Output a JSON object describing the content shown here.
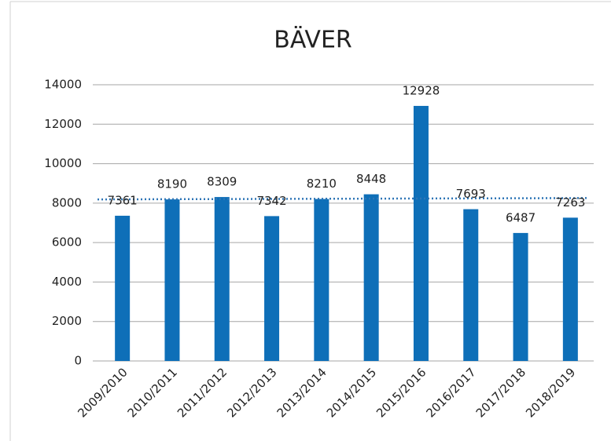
{
  "chart_data": {
    "type": "bar",
    "title": "BÄVER",
    "categories": [
      "2009/2010",
      "2010/2011",
      "2011/2012",
      "2012/2013",
      "2013/2014",
      "2014/2015",
      "2015/2016",
      "2016/2017",
      "2017/2018",
      "2018/2019"
    ],
    "values": [
      7361,
      8190,
      8309,
      7342,
      8210,
      8448,
      12928,
      7693,
      6487,
      7263
    ],
    "color": "#0e6fb8",
    "ylim": [
      0,
      14000
    ],
    "yticks": [
      0,
      2000,
      4000,
      6000,
      8000,
      10000,
      12000,
      14000
    ],
    "grid": true,
    "trendline": true,
    "trendline_color": "#2e75b6"
  }
}
